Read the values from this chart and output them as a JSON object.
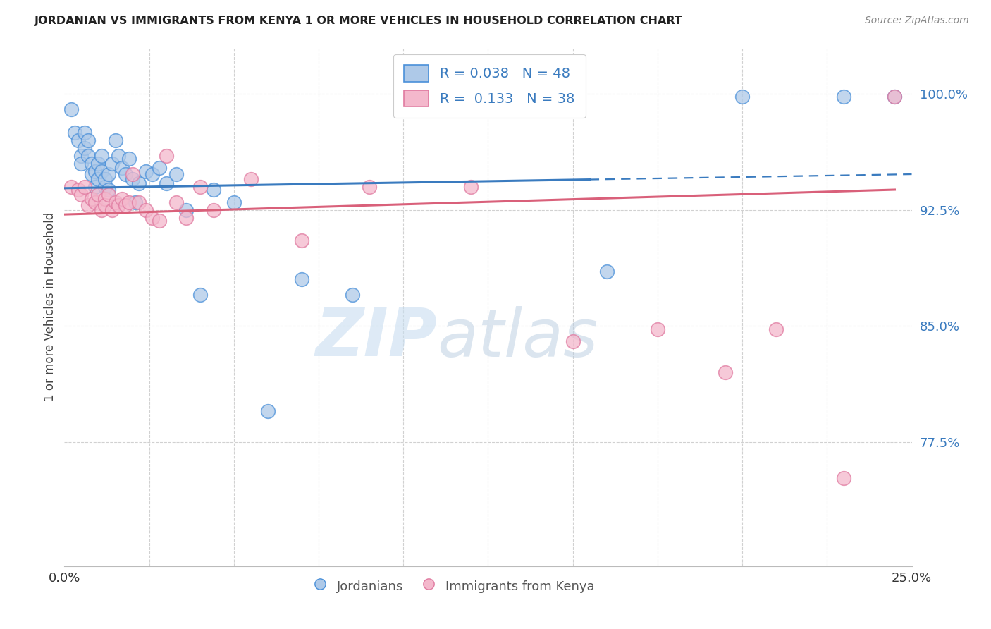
{
  "title": "JORDANIAN VS IMMIGRANTS FROM KENYA 1 OR MORE VEHICLES IN HOUSEHOLD CORRELATION CHART",
  "source": "Source: ZipAtlas.com",
  "ylabel": "1 or more Vehicles in Household",
  "ytick_labels": [
    "100.0%",
    "92.5%",
    "85.0%",
    "77.5%"
  ],
  "ytick_values": [
    1.0,
    0.925,
    0.85,
    0.775
  ],
  "xlim": [
    0.0,
    0.25
  ],
  "ylim": [
    0.695,
    1.03
  ],
  "legend_blue_label": "Jordanians",
  "legend_pink_label": "Immigrants from Kenya",
  "R_blue": "0.038",
  "N_blue": "48",
  "R_pink": "0.133",
  "N_pink": "38",
  "blue_fill": "#aec9e8",
  "blue_edge": "#4a90d9",
  "pink_fill": "#f4b8cc",
  "pink_edge": "#e07aa0",
  "blue_line_color": "#3a7bbf",
  "pink_line_color": "#d9607a",
  "blue_dots_x": [
    0.002,
    0.003,
    0.004,
    0.005,
    0.005,
    0.006,
    0.006,
    0.007,
    0.007,
    0.008,
    0.008,
    0.009,
    0.009,
    0.01,
    0.01,
    0.011,
    0.011,
    0.012,
    0.012,
    0.013,
    0.013,
    0.014,
    0.015,
    0.016,
    0.017,
    0.018,
    0.019,
    0.02,
    0.021,
    0.022,
    0.024,
    0.026,
    0.028,
    0.03,
    0.033,
    0.036,
    0.04,
    0.044,
    0.05,
    0.06,
    0.07,
    0.085,
    0.1,
    0.13,
    0.16,
    0.2,
    0.23,
    0.245
  ],
  "blue_dots_y": [
    0.99,
    0.975,
    0.97,
    0.96,
    0.955,
    0.975,
    0.965,
    0.97,
    0.96,
    0.955,
    0.948,
    0.94,
    0.95,
    0.955,
    0.945,
    0.96,
    0.95,
    0.94,
    0.945,
    0.948,
    0.938,
    0.955,
    0.97,
    0.96,
    0.952,
    0.948,
    0.958,
    0.945,
    0.93,
    0.942,
    0.95,
    0.948,
    0.952,
    0.942,
    0.948,
    0.925,
    0.87,
    0.938,
    0.93,
    0.795,
    0.88,
    0.87,
    0.998,
    0.998,
    0.885,
    0.998,
    0.998,
    0.998
  ],
  "pink_dots_x": [
    0.002,
    0.004,
    0.005,
    0.006,
    0.007,
    0.008,
    0.009,
    0.01,
    0.011,
    0.012,
    0.012,
    0.013,
    0.014,
    0.015,
    0.016,
    0.017,
    0.018,
    0.019,
    0.02,
    0.022,
    0.024,
    0.026,
    0.028,
    0.03,
    0.033,
    0.036,
    0.04,
    0.044,
    0.055,
    0.07,
    0.09,
    0.12,
    0.15,
    0.175,
    0.195,
    0.21,
    0.23,
    0.245
  ],
  "pink_dots_y": [
    0.94,
    0.938,
    0.935,
    0.94,
    0.928,
    0.932,
    0.93,
    0.935,
    0.925,
    0.932,
    0.928,
    0.935,
    0.925,
    0.93,
    0.928,
    0.932,
    0.928,
    0.93,
    0.948,
    0.93,
    0.925,
    0.92,
    0.918,
    0.96,
    0.93,
    0.92,
    0.94,
    0.925,
    0.945,
    0.905,
    0.94,
    0.94,
    0.84,
    0.848,
    0.82,
    0.848,
    0.752,
    0.998
  ],
  "watermark_zip": "ZIP",
  "watermark_atlas": "atlas",
  "background_color": "#ffffff",
  "grid_color": "#cccccc"
}
